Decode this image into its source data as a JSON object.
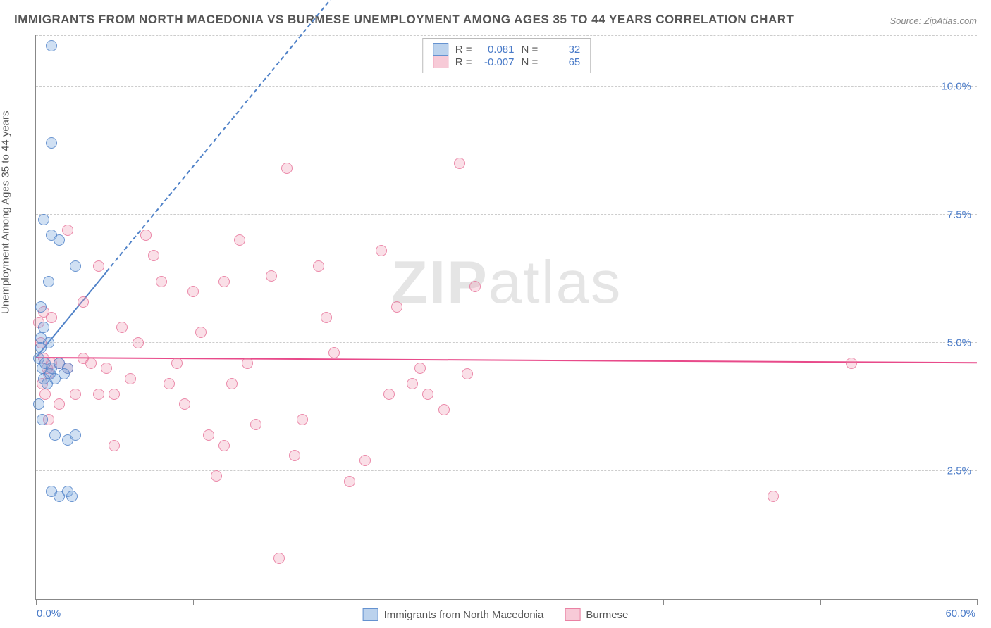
{
  "title": "IMMIGRANTS FROM NORTH MACEDONIA VS BURMESE UNEMPLOYMENT AMONG AGES 35 TO 44 YEARS CORRELATION CHART",
  "source": "Source: ZipAtlas.com",
  "ylabel": "Unemployment Among Ages 35 to 44 years",
  "watermark_a": "ZIP",
  "watermark_b": "atlas",
  "chart": {
    "type": "scatter",
    "xlim": [
      0,
      60
    ],
    "ylim": [
      0,
      11
    ],
    "x_start_label": "0.0%",
    "x_end_label": "60.0%",
    "ytick_positions": [
      2.5,
      5.0,
      7.5,
      10.0
    ],
    "ytick_labels": [
      "2.5%",
      "5.0%",
      "7.5%",
      "10.0%"
    ],
    "xtick_positions": [
      0,
      10,
      20,
      30,
      40,
      50,
      60
    ],
    "grid_color": "#cccccc",
    "background_color": "#ffffff",
    "series": [
      {
        "name": "Immigrants from North Macedonia",
        "color_fill": "rgba(120,165,220,0.35)",
        "color_stroke": "#5082c8",
        "class": "blue",
        "R": "0.081",
        "N": "32",
        "trend": {
          "x1": 0,
          "y1": 4.7,
          "x2": 60,
          "y2": 27,
          "solid_until_x": 4.5,
          "color": "#5082c8"
        },
        "points": [
          [
            0.2,
            4.7
          ],
          [
            0.3,
            5.1
          ],
          [
            0.4,
            4.5
          ],
          [
            0.5,
            4.3
          ],
          [
            0.6,
            4.6
          ],
          [
            0.8,
            5.0
          ],
          [
            0.3,
            4.9
          ],
          [
            0.5,
            5.3
          ],
          [
            0.7,
            4.2
          ],
          [
            0.9,
            4.4
          ],
          [
            0.2,
            3.8
          ],
          [
            0.4,
            3.5
          ],
          [
            1.0,
            4.5
          ],
          [
            1.2,
            4.3
          ],
          [
            1.5,
            4.6
          ],
          [
            2.0,
            4.5
          ],
          [
            0.5,
            7.4
          ],
          [
            1.0,
            7.1
          ],
          [
            1.5,
            7.0
          ],
          [
            2.5,
            6.5
          ],
          [
            0.8,
            6.2
          ],
          [
            0.3,
            5.7
          ],
          [
            1.0,
            10.8
          ],
          [
            1.0,
            8.9
          ],
          [
            1.2,
            3.2
          ],
          [
            2.0,
            3.1
          ],
          [
            2.5,
            3.2
          ],
          [
            1.0,
            2.1
          ],
          [
            1.5,
            2.0
          ],
          [
            2.0,
            2.1
          ],
          [
            2.3,
            2.0
          ],
          [
            1.8,
            4.4
          ]
        ]
      },
      {
        "name": "Burmese",
        "color_fill": "rgba(240,150,175,0.3)",
        "color_stroke": "#e66e96",
        "class": "pink",
        "R": "-0.007",
        "N": "65",
        "trend": {
          "x1": 0,
          "y1": 4.7,
          "x2": 60,
          "y2": 4.6,
          "solid_until_x": 60,
          "color": "#e84a8a"
        },
        "points": [
          [
            0.2,
            5.4
          ],
          [
            0.3,
            5.0
          ],
          [
            0.5,
            4.7
          ],
          [
            0.7,
            4.5
          ],
          [
            0.4,
            4.2
          ],
          [
            0.6,
            4.0
          ],
          [
            0.8,
            4.4
          ],
          [
            1.0,
            4.6
          ],
          [
            1.0,
            5.5
          ],
          [
            1.5,
            4.6
          ],
          [
            2.0,
            4.5
          ],
          [
            2.5,
            4.0
          ],
          [
            3.0,
            4.7
          ],
          [
            3.5,
            4.6
          ],
          [
            4.0,
            4.0
          ],
          [
            4.5,
            4.5
          ],
          [
            5.0,
            4.0
          ],
          [
            5.5,
            5.3
          ],
          [
            6.0,
            4.3
          ],
          [
            7.0,
            7.1
          ],
          [
            7.5,
            6.7
          ],
          [
            8.0,
            6.2
          ],
          [
            8.5,
            4.2
          ],
          [
            9.0,
            4.6
          ],
          [
            10.0,
            6.0
          ],
          [
            10.5,
            5.2
          ],
          [
            11.0,
            3.2
          ],
          [
            12.0,
            6.2
          ],
          [
            12.5,
            4.2
          ],
          [
            13.0,
            7.0
          ],
          [
            13.5,
            4.6
          ],
          [
            14.0,
            3.4
          ],
          [
            15.0,
            6.3
          ],
          [
            15.5,
            0.8
          ],
          [
            16.0,
            8.4
          ],
          [
            16.5,
            2.8
          ],
          [
            17.0,
            3.5
          ],
          [
            18.0,
            6.5
          ],
          [
            18.5,
            5.5
          ],
          [
            19.0,
            4.8
          ],
          [
            20.0,
            2.3
          ],
          [
            21.0,
            2.7
          ],
          [
            22.0,
            6.8
          ],
          [
            23.0,
            5.7
          ],
          [
            24.0,
            4.2
          ],
          [
            24.5,
            4.5
          ],
          [
            25.0,
            4.0
          ],
          [
            26.0,
            3.7
          ],
          [
            27.0,
            8.5
          ],
          [
            27.5,
            4.4
          ],
          [
            28.0,
            6.1
          ],
          [
            11.5,
            2.4
          ],
          [
            47.0,
            2.0
          ],
          [
            52.0,
            4.6
          ],
          [
            3.0,
            5.8
          ],
          [
            4.0,
            6.5
          ],
          [
            6.5,
            5.0
          ],
          [
            2.0,
            7.2
          ],
          [
            5.0,
            3.0
          ],
          [
            12.0,
            3.0
          ],
          [
            9.5,
            3.8
          ],
          [
            1.5,
            3.8
          ],
          [
            0.5,
            5.6
          ],
          [
            0.8,
            3.5
          ],
          [
            22.5,
            4.0
          ]
        ]
      }
    ]
  },
  "legend": {
    "series1": "Immigrants from North Macedonia",
    "series2": "Burmese"
  },
  "stats_labels": {
    "R": "R =",
    "N": "N ="
  }
}
